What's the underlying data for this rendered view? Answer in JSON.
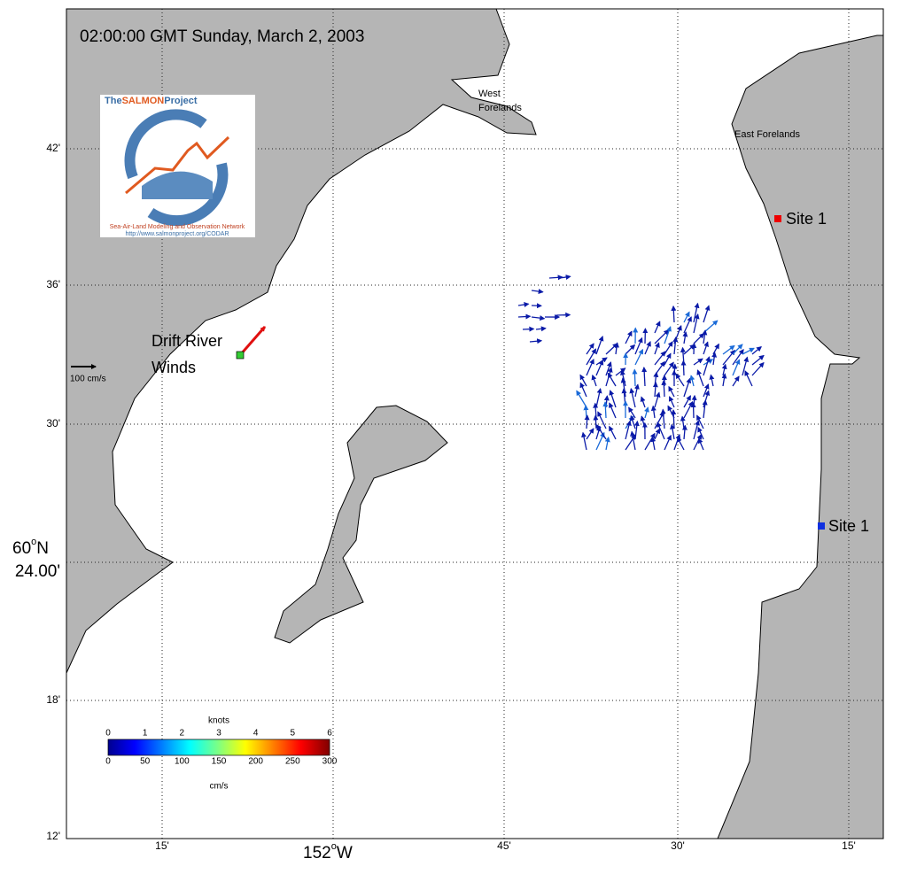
{
  "title": "02:00:00 GMT Sunday, March 2, 2003",
  "lat_ticks": [
    "42'",
    "36'",
    "30'",
    "24.00'",
    "18'",
    "12'"
  ],
  "lat_major": {
    "degree": "60",
    "symbol": "o",
    "hemisphere": "N"
  },
  "lon_ticks": [
    "15'",
    "152",
    "45'",
    "30'",
    "15'"
  ],
  "lon_major": {
    "symbol": "o",
    "hemisphere": "W"
  },
  "places": {
    "west_forelands": [
      "West",
      "Forelands"
    ],
    "east_forelands": "East Forelands",
    "site_north": "Site 1",
    "site_south": "Site 1",
    "drift_river": [
      "Drift River",
      "Winds"
    ],
    "scale_arrow": "100 cm/s"
  },
  "logo": {
    "title": [
      "The",
      "SALMON",
      "Project"
    ],
    "tagline": "Sea-Air-Land Modeling and Observation Network",
    "url": "http://www.salmonproject.org/CODAR"
  },
  "colorbar": {
    "top_label": "knots",
    "top_ticks": [
      0,
      1,
      2,
      3,
      4,
      5,
      6
    ],
    "bottom_ticks": [
      0,
      50,
      100,
      150,
      200,
      250,
      300
    ],
    "bottom_label": "cm/s"
  }
}
